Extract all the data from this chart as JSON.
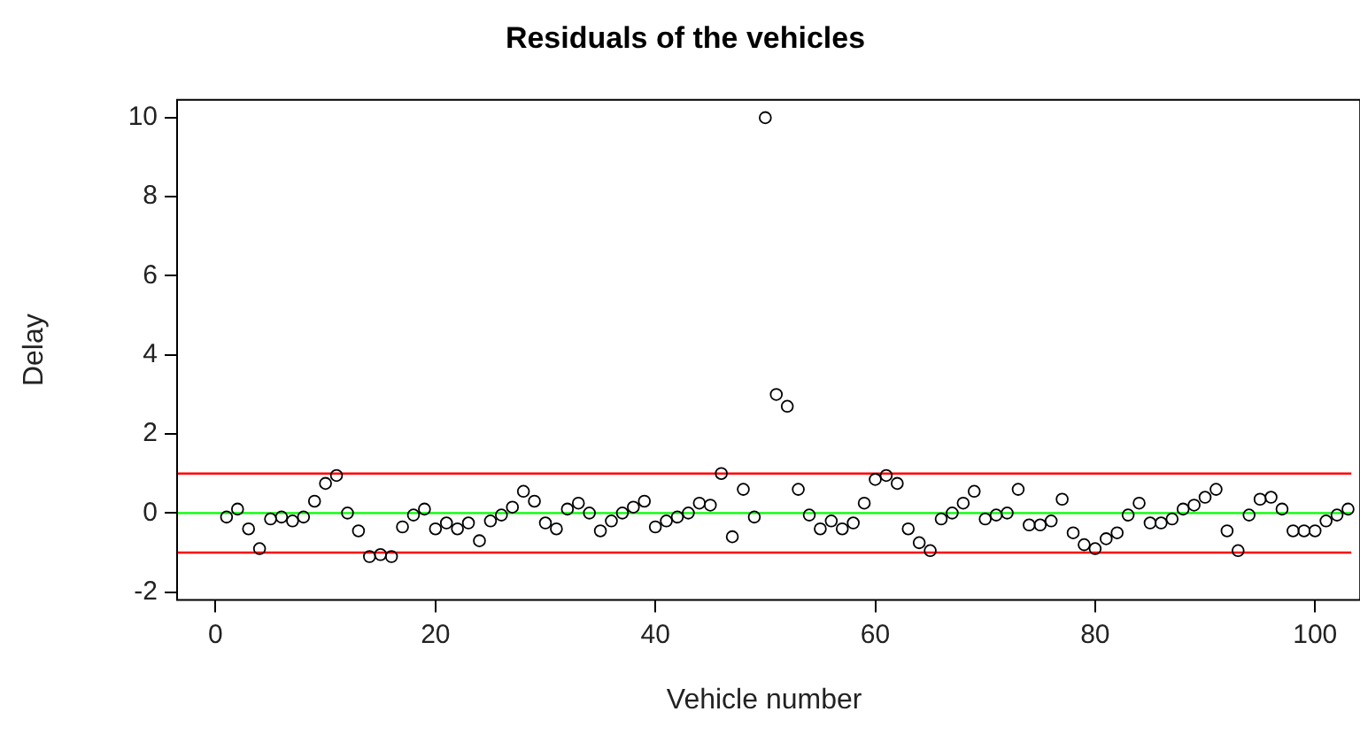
{
  "chart_data": {
    "type": "scatter",
    "title": "Residuals of the vehicles",
    "xlabel": "Vehicle number",
    "ylabel": "Delay",
    "x": [
      1,
      2,
      3,
      4,
      5,
      6,
      7,
      8,
      9,
      10,
      11,
      12,
      13,
      14,
      15,
      16,
      17,
      18,
      19,
      20,
      21,
      22,
      23,
      24,
      25,
      26,
      27,
      28,
      29,
      30,
      31,
      32,
      33,
      34,
      35,
      36,
      37,
      38,
      39,
      40,
      41,
      42,
      43,
      44,
      45,
      46,
      47,
      48,
      49,
      50,
      51,
      52,
      53,
      54,
      55,
      56,
      57,
      58,
      59,
      60,
      61,
      62,
      63,
      64,
      65,
      66,
      67,
      68,
      69,
      70,
      71,
      72,
      73,
      74,
      75,
      76,
      77,
      78,
      79,
      80,
      81,
      82,
      83,
      84,
      85,
      86,
      87,
      88,
      89,
      90,
      91,
      92,
      93,
      94,
      95,
      96,
      97,
      98,
      99,
      100,
      101,
      102,
      103
    ],
    "values": [
      -0.1,
      0.1,
      -0.4,
      -0.9,
      -0.15,
      -0.1,
      -0.2,
      -0.1,
      0.3,
      0.75,
      0.95,
      0,
      -0.45,
      -1.1,
      -1.05,
      -1.1,
      -0.35,
      -0.05,
      0.1,
      -0.4,
      -0.25,
      -0.4,
      -0.25,
      -0.7,
      -0.2,
      -0.05,
      0.15,
      0.55,
      0.3,
      -0.25,
      -0.4,
      0.1,
      0.25,
      0,
      -0.45,
      -0.2,
      0,
      0.15,
      0.3,
      -0.35,
      -0.2,
      -0.1,
      0,
      0.25,
      0.2,
      1.0,
      -0.6,
      0.6,
      -0.1,
      10,
      3.0,
      2.7,
      0.6,
      -0.05,
      -0.4,
      -0.2,
      -0.4,
      -0.25,
      0.25,
      0.85,
      0.95,
      0.75,
      -0.4,
      -0.75,
      -0.95,
      -0.15,
      0,
      0.25,
      0.55,
      -0.15,
      -0.05,
      0,
      0.6,
      -0.3,
      -0.3,
      -0.2,
      0.35,
      -0.5,
      -0.8,
      -0.9,
      -0.65,
      -0.5,
      -0.05,
      0.25,
      -0.25,
      -0.25,
      -0.15,
      0.1,
      0.2,
      0.4,
      0.6,
      -0.45,
      -0.95,
      -0.05,
      0.35,
      0.4,
      0.1,
      -0.45,
      -0.45,
      -0.45,
      -0.2,
      -0.05,
      0.1
    ],
    "color": "#000000",
    "marker": "circle",
    "xlim": [
      -3.5,
      103.3
    ],
    "xticks": [
      0,
      20,
      40,
      60,
      80,
      100
    ],
    "ylim": [
      -2.2,
      10.45
    ],
    "yticks": [
      -2,
      0,
      2,
      4,
      6,
      8,
      10
    ],
    "ref_lines": [
      {
        "axis": "y",
        "value": 1,
        "color": "#ff0000"
      },
      {
        "axis": "y",
        "value": -1,
        "color": "#ff0000"
      },
      {
        "axis": "y",
        "value": 0,
        "color": "#00ff00"
      }
    ]
  }
}
